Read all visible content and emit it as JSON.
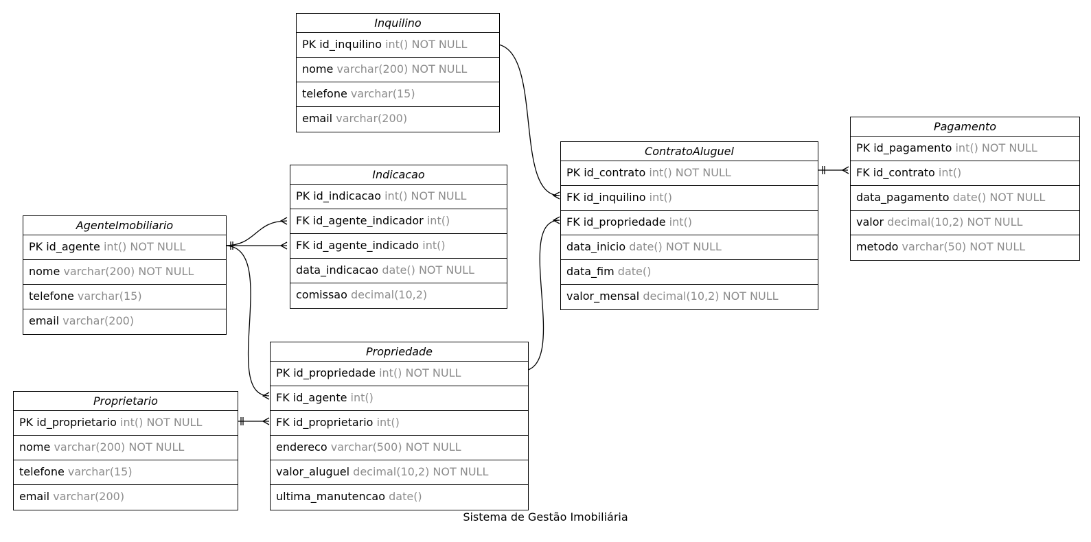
{
  "caption": "Sistema de Gestão Imobiliária",
  "entities": {
    "inquilino": {
      "name": "Inquilino",
      "attrs": [
        {
          "name": "PK id_inquilino",
          "type": "int() NOT NULL"
        },
        {
          "name": "nome",
          "type": "varchar(200) NOT NULL"
        },
        {
          "name": "telefone",
          "type": "varchar(15)"
        },
        {
          "name": "email",
          "type": "varchar(200)"
        }
      ]
    },
    "indicacao": {
      "name": "Indicacao",
      "attrs": [
        {
          "name": "PK id_indicacao",
          "type": "int() NOT NULL"
        },
        {
          "name": "FK id_agente_indicador",
          "type": "int()"
        },
        {
          "name": "FK id_agente_indicado",
          "type": "int()"
        },
        {
          "name": "data_indicacao",
          "type": "date() NOT NULL"
        },
        {
          "name": "comissao",
          "type": "decimal(10,2)"
        }
      ]
    },
    "agente": {
      "name": "AgenteImobiliario",
      "attrs": [
        {
          "name": "PK id_agente",
          "type": "int() NOT NULL"
        },
        {
          "name": "nome",
          "type": "varchar(200) NOT NULL"
        },
        {
          "name": "telefone",
          "type": "varchar(15)"
        },
        {
          "name": "email",
          "type": "varchar(200)"
        }
      ]
    },
    "contrato": {
      "name": "ContratoAluguel",
      "attrs": [
        {
          "name": "PK id_contrato",
          "type": "int() NOT NULL"
        },
        {
          "name": "FK id_inquilino",
          "type": "int()"
        },
        {
          "name": "FK id_propriedade",
          "type": "int()"
        },
        {
          "name": "data_inicio",
          "type": "date() NOT NULL"
        },
        {
          "name": "data_fim",
          "type": "date()"
        },
        {
          "name": "valor_mensal",
          "type": "decimal(10,2) NOT NULL"
        }
      ]
    },
    "pagamento": {
      "name": "Pagamento",
      "attrs": [
        {
          "name": "PK id_pagamento",
          "type": "int() NOT NULL"
        },
        {
          "name": "FK id_contrato",
          "type": "int()"
        },
        {
          "name": "data_pagamento",
          "type": "date() NOT NULL"
        },
        {
          "name": "valor",
          "type": "decimal(10,2) NOT NULL"
        },
        {
          "name": "metodo",
          "type": "varchar(50) NOT NULL"
        }
      ]
    },
    "propriedade": {
      "name": "Propriedade",
      "attrs": [
        {
          "name": "PK id_propriedade",
          "type": "int() NOT NULL"
        },
        {
          "name": "FK id_agente",
          "type": "int()"
        },
        {
          "name": "FK id_proprietario",
          "type": "int()"
        },
        {
          "name": "endereco",
          "type": "varchar(500) NOT NULL"
        },
        {
          "name": "valor_aluguel",
          "type": "decimal(10,2) NOT NULL"
        },
        {
          "name": "ultima_manutencao",
          "type": "date()"
        }
      ]
    },
    "proprietario": {
      "name": "Proprietario",
      "attrs": [
        {
          "name": "PK id_proprietario",
          "type": "int() NOT NULL"
        },
        {
          "name": "nome",
          "type": "varchar(200) NOT NULL"
        },
        {
          "name": "telefone",
          "type": "varchar(15)"
        },
        {
          "name": "email",
          "type": "varchar(200)"
        }
      ]
    }
  },
  "relationships": [
    {
      "from": "Inquilino.id_inquilino",
      "from_cardinality": "one",
      "to": "ContratoAluguel.id_inquilino",
      "to_cardinality": "many"
    },
    {
      "from": "Propriedade.id_propriedade",
      "from_cardinality": "one",
      "to": "ContratoAluguel.id_propriedade",
      "to_cardinality": "many"
    },
    {
      "from": "ContratoAluguel.id_contrato",
      "from_cardinality": "one",
      "to": "Pagamento.id_contrato",
      "to_cardinality": "many"
    },
    {
      "from": "AgenteImobiliario.id_agente",
      "from_cardinality": "one",
      "to": "Indicacao.id_agente_indicador",
      "to_cardinality": "many"
    },
    {
      "from": "AgenteImobiliario.id_agente",
      "from_cardinality": "one",
      "to": "Indicacao.id_agente_indicado",
      "to_cardinality": "many"
    },
    {
      "from": "AgenteImobiliario.id_agente",
      "from_cardinality": "one",
      "to": "Propriedade.id_agente",
      "to_cardinality": "many"
    },
    {
      "from": "Proprietario.id_proprietario",
      "from_cardinality": "one",
      "to": "Propriedade.id_proprietario",
      "to_cardinality": "many"
    }
  ]
}
